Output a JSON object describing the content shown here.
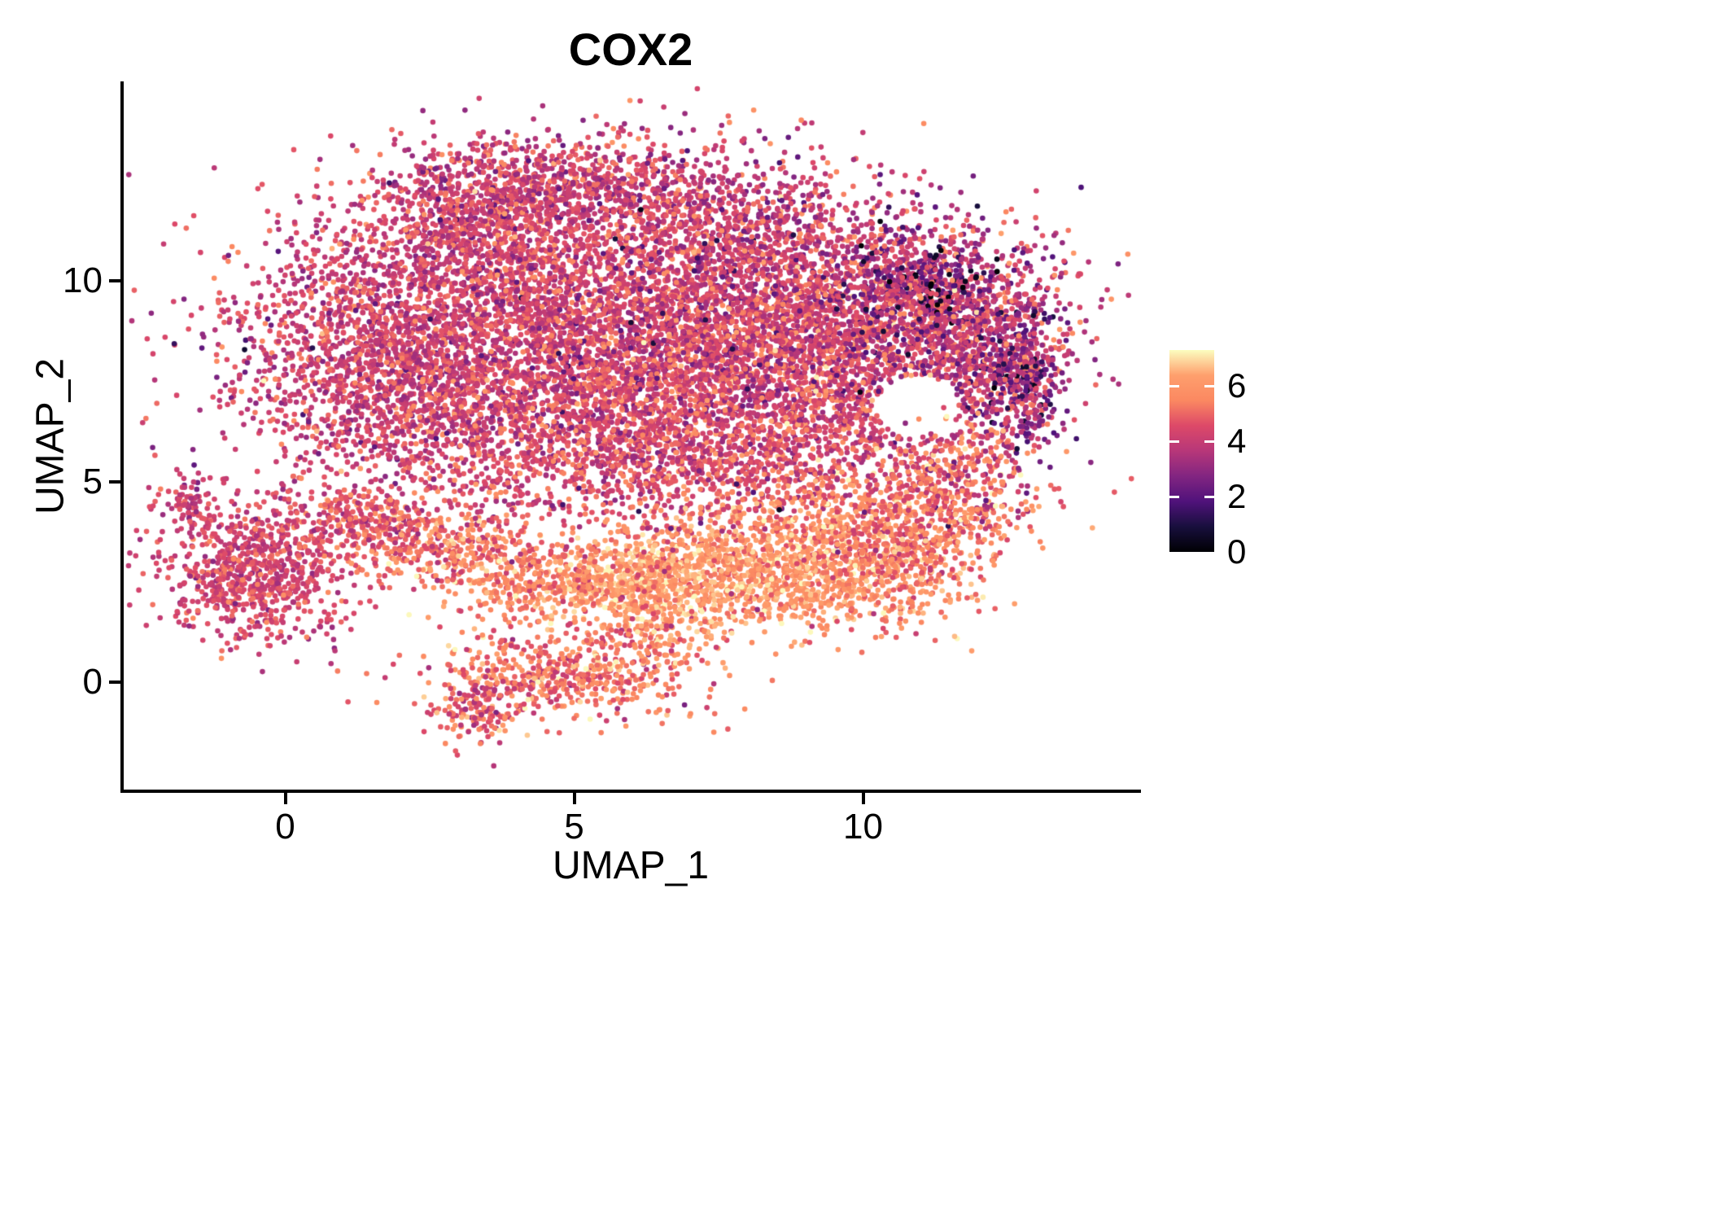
{
  "title": "COX2",
  "axes": {
    "x": {
      "label": "UMAP_1",
      "ticks": [
        "0",
        "5",
        "10"
      ],
      "tick_values": [
        0,
        5,
        10
      ],
      "range": [
        -2.8,
        14.8
      ]
    },
    "y": {
      "label": "UMAP_2",
      "ticks": [
        "0",
        "5",
        "10"
      ],
      "tick_values": [
        0,
        5,
        10
      ],
      "range": [
        -2.7,
        14.9
      ]
    }
  },
  "colorbar": {
    "ticks": [
      "0",
      "2",
      "4",
      "6"
    ],
    "tick_values": [
      0,
      2,
      4,
      6
    ],
    "min": 0,
    "max": 7.3,
    "colormap": "magma"
  },
  "chart_data": {
    "type": "scatter",
    "title": "COX2",
    "xlabel": "UMAP_1",
    "ylabel": "UMAP_2",
    "xlim": [
      -2.8,
      14.8
    ],
    "ylim": [
      -2.7,
      14.9
    ],
    "legend": "continuous colorbar right, expression 0-7.3, magma colormap",
    "grid": false,
    "point_radius_px": 3.3,
    "seed": 7,
    "color_scale": {
      "name": "magma",
      "domain": [
        0,
        7.3
      ],
      "stops": [
        "#000004",
        "#180f3d",
        "#50127b",
        "#822581",
        "#b73779",
        "#dd4968",
        "#fb8861",
        "#fe9f6d",
        "#fcfdbf"
      ]
    },
    "hole": {
      "cx": 10.95,
      "cy": 6.85,
      "rx": 0.7,
      "ry": 0.8
    },
    "clusters": [
      {
        "label": "main-blob-left",
        "cx": 2.2,
        "cy": 8.3,
        "sx": 1.6,
        "sy": 1.7,
        "n": 2400,
        "expr_mean": 4.2,
        "expr_sd": 0.7,
        "avoid_hole": true
      },
      {
        "label": "main-blob-center",
        "cx": 5.8,
        "cy": 8.6,
        "sx": 1.9,
        "sy": 1.9,
        "n": 3000,
        "expr_mean": 4.3,
        "expr_sd": 0.8,
        "avoid_hole": true
      },
      {
        "label": "main-blob-right",
        "cx": 9.2,
        "cy": 8.4,
        "sx": 1.7,
        "sy": 1.5,
        "n": 2400,
        "expr_mean": 4.2,
        "expr_sd": 0.9,
        "avoid_hole": true
      },
      {
        "label": "main-blob-far-right",
        "cx": 11.8,
        "cy": 8.6,
        "sx": 1.0,
        "sy": 1.3,
        "n": 850,
        "expr_mean": 3.8,
        "expr_sd": 1.1,
        "avoid_hole": true
      },
      {
        "label": "right-edge-dark-strip",
        "cx": 12.7,
        "cy": 7.6,
        "sx": 0.35,
        "sy": 0.95,
        "n": 330,
        "expr_mean": 3.1,
        "expr_sd": 1.2,
        "avoid_hole": true
      },
      {
        "label": "top-ridge",
        "cx": 4.6,
        "cy": 12.4,
        "sx": 1.5,
        "sy": 0.6,
        "n": 750,
        "expr_mean": 4.2,
        "expr_sd": 0.8,
        "avoid_hole": true
      },
      {
        "label": "top-left-shoulder",
        "cx": 3.3,
        "cy": 11.4,
        "sx": 0.9,
        "sy": 0.8,
        "n": 480,
        "expr_mean": 4.2,
        "expr_sd": 0.8,
        "avoid_hole": true
      },
      {
        "label": "top-right-area",
        "cx": 7.8,
        "cy": 11.2,
        "sx": 1.4,
        "sy": 0.9,
        "n": 650,
        "expr_mean": 4.1,
        "expr_sd": 0.9,
        "avoid_hole": true
      },
      {
        "label": "top-right-dark-patch",
        "cx": 10.9,
        "cy": 9.9,
        "sx": 0.8,
        "sy": 0.7,
        "n": 380,
        "expr_mean": 3.5,
        "expr_sd": 1.3,
        "avoid_hole": true
      },
      {
        "label": "blob-lower-fringe",
        "cx": 6.8,
        "cy": 6.1,
        "sx": 2.4,
        "sy": 0.9,
        "n": 1100,
        "expr_mean": 4.4,
        "expr_sd": 0.8,
        "avoid_hole": true
      },
      {
        "label": "dark-cells-top-right",
        "cx": 11.2,
        "cy": 9.9,
        "sx": 0.5,
        "sy": 0.45,
        "n": 50,
        "expr_mean": 0.9,
        "expr_sd": 0.7,
        "avoid_hole": true
      },
      {
        "label": "band-orange-main",
        "cx": 8.6,
        "cy": 2.9,
        "sx": 1.5,
        "sy": 0.8,
        "n": 1400,
        "expr_mean": 5.9,
        "expr_sd": 0.7,
        "avoid_hole": false
      },
      {
        "label": "band-bright-core",
        "cx": 6.4,
        "cy": 2.4,
        "sx": 0.9,
        "sy": 0.5,
        "n": 480,
        "expr_mean": 6.4,
        "expr_sd": 0.5,
        "avoid_hole": false
      },
      {
        "label": "band-right-mix",
        "cx": 10.6,
        "cy": 3.6,
        "sx": 0.9,
        "sy": 0.9,
        "n": 550,
        "expr_mean": 5.2,
        "expr_sd": 0.9,
        "avoid_hole": false
      },
      {
        "label": "right-rising-arm",
        "cx": 11.7,
        "cy": 4.9,
        "sx": 0.6,
        "sy": 0.8,
        "n": 320,
        "expr_mean": 5.0,
        "expr_sd": 1.0,
        "avoid_hole": false
      },
      {
        "label": "band-left-center",
        "cx": 4.6,
        "cy": 2.5,
        "sx": 1.1,
        "sy": 0.45,
        "n": 420,
        "expr_mean": 5.6,
        "expr_sd": 0.8,
        "avoid_hole": false
      },
      {
        "label": "bridge-to-left",
        "cx": 2.8,
        "cy": 3.4,
        "sx": 0.9,
        "sy": 0.5,
        "n": 320,
        "expr_mean": 5.3,
        "expr_sd": 0.9,
        "avoid_hole": false
      },
      {
        "label": "bridge-far-left",
        "cx": 1.8,
        "cy": 4.0,
        "sx": 0.5,
        "sy": 0.4,
        "n": 140,
        "expr_mean": 4.8,
        "expr_sd": 0.8,
        "avoid_hole": false
      },
      {
        "label": "left-island",
        "cx": -0.55,
        "cy": 2.7,
        "sx": 0.8,
        "sy": 0.85,
        "n": 800,
        "expr_mean": 4.3,
        "expr_sd": 0.6,
        "avoid_hole": false
      },
      {
        "label": "left-island-tail",
        "cx": -1.75,
        "cy": 4.4,
        "sx": 0.25,
        "sy": 0.35,
        "n": 70,
        "expr_mean": 4.2,
        "expr_sd": 0.6,
        "avoid_hole": false
      },
      {
        "label": "left-island-ne-specks",
        "cx": 0.9,
        "cy": 3.9,
        "sx": 0.4,
        "sy": 0.4,
        "n": 110,
        "expr_mean": 4.4,
        "expr_sd": 0.7,
        "avoid_hole": false
      },
      {
        "label": "bottom-cluster",
        "cx": 4.8,
        "cy": 0.2,
        "sx": 1.1,
        "sy": 0.55,
        "n": 520,
        "expr_mean": 5.2,
        "expr_sd": 0.9,
        "avoid_hole": false
      },
      {
        "label": "bottom-cluster-tail",
        "cx": 3.3,
        "cy": -0.7,
        "sx": 0.35,
        "sy": 0.45,
        "n": 140,
        "expr_mean": 4.6,
        "expr_sd": 0.9,
        "avoid_hole": false
      },
      {
        "label": "bottom-cluster-right",
        "cx": 6.4,
        "cy": 0.9,
        "sx": 0.5,
        "sy": 0.4,
        "n": 120,
        "expr_mean": 5.4,
        "expr_sd": 0.9,
        "avoid_hole": false
      },
      {
        "label": "mid-gap-sparse",
        "cx": 6.5,
        "cy": 4.9,
        "sx": 3.0,
        "sy": 0.55,
        "n": 240,
        "expr_mean": 4.7,
        "expr_sd": 0.8,
        "avoid_hole": false
      },
      {
        "label": "blob-wide-noise",
        "cx": 6.0,
        "cy": 9.0,
        "sx": 3.4,
        "sy": 2.4,
        "n": 750,
        "expr_mean": 4.0,
        "expr_sd": 1.3,
        "avoid_hole": true
      }
    ]
  }
}
